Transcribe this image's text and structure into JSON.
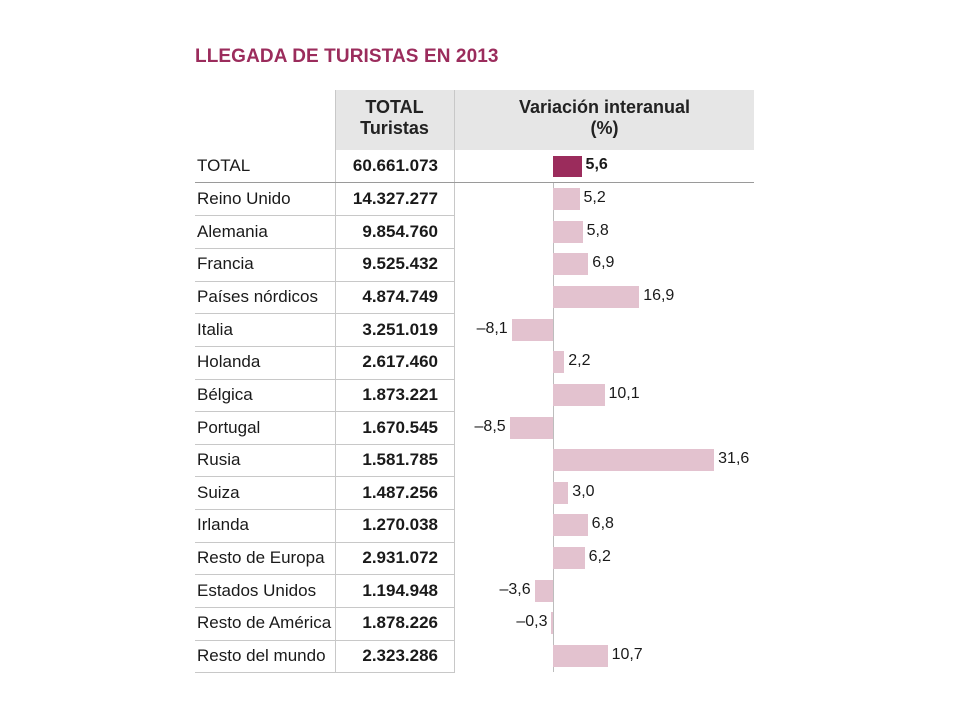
{
  "title": "LLEGADA DE TURISTAS EN 2013",
  "header": {
    "total_line1": "TOTAL",
    "total_line2": "Turistas",
    "variation_line1": "Variación interanual",
    "variation_line2": "(%)"
  },
  "colors": {
    "title": "#9b2c5c",
    "total_bar": "#9b2c5c",
    "country_bar": "#e3c2cf",
    "header_background": "#e6e6e6"
  },
  "chart_data": {
    "type": "bar",
    "orientation": "horizontal",
    "title": "LLEGADA DE TURISTAS EN 2013",
    "categories": [
      "TOTAL",
      "Reino Unido",
      "Alemania",
      "Francia",
      "Países nórdicos",
      "Italia",
      "Holanda",
      "Bélgica",
      "Portugal",
      "Rusia",
      "Suiza",
      "Irlanda",
      "Resto de Europa",
      "Estados Unidos",
      "Resto de América",
      "Resto del mundo"
    ],
    "total_tourists": [
      "60.661.073",
      "14.327.277",
      "9.854.760",
      "9.525.432",
      "4.874.749",
      "3.251.019",
      "2.617.460",
      "1.873.221",
      "1.670.545",
      "1.581.785",
      "1.487.256",
      "1.270.038",
      "2.931.072",
      "1.194.948",
      "1.878.226",
      "2.323.286"
    ],
    "values": [
      5.6,
      5.2,
      5.8,
      6.9,
      16.9,
      -8.1,
      2.2,
      10.1,
      -8.5,
      31.6,
      3.0,
      6.8,
      6.2,
      -3.6,
      -0.3,
      10.7
    ],
    "value_labels": [
      "5,6",
      "5,2",
      "5,8",
      "6,9",
      "16,9",
      "–8,1",
      "2,2",
      "10,1",
      "–8,5",
      "31,6",
      "3,0",
      "6,8",
      "6,2",
      "–3,6",
      "–0,3",
      "10,7"
    ]
  }
}
